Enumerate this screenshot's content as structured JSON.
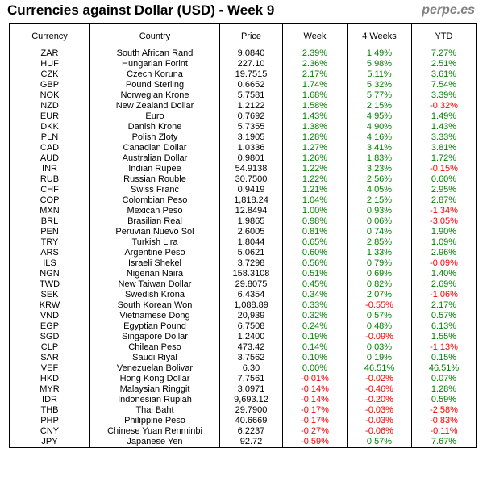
{
  "title": "Currencies against Dollar (USD) - Week 9",
  "brand": "perpe.es",
  "colors": {
    "positive": "#008000",
    "negative": "#ff0000"
  },
  "columns": [
    "Currency",
    "Country",
    "Price",
    "Week",
    "4 Weeks",
    "YTD"
  ],
  "rows": [
    {
      "code": "ZAR",
      "country": "South African Rand",
      "price": "9.0840",
      "week": "2.39%",
      "weeks4": "1.49%",
      "ytd": "7.27%"
    },
    {
      "code": "HUF",
      "country": "Hungarian Forint",
      "price": "227.10",
      "week": "2.36%",
      "weeks4": "5.98%",
      "ytd": "2.51%"
    },
    {
      "code": "CZK",
      "country": "Czech Koruna",
      "price": "19.7515",
      "week": "2.17%",
      "weeks4": "5.11%",
      "ytd": "3.61%"
    },
    {
      "code": "GBP",
      "country": "Pound Sterling",
      "price": "0.6652",
      "week": "1.74%",
      "weeks4": "5.32%",
      "ytd": "7.54%"
    },
    {
      "code": "NOK",
      "country": "Norwegian Krone",
      "price": "5.7581",
      "week": "1.68%",
      "weeks4": "5.77%",
      "ytd": "3.39%"
    },
    {
      "code": "NZD",
      "country": "New Zealand Dollar",
      "price": "1.2122",
      "week": "1.58%",
      "weeks4": "2.15%",
      "ytd": "-0.32%"
    },
    {
      "code": "EUR",
      "country": "Euro",
      "price": "0.7692",
      "week": "1.43%",
      "weeks4": "4.95%",
      "ytd": "1.49%"
    },
    {
      "code": "DKK",
      "country": "Danish Krone",
      "price": "5.7355",
      "week": "1.38%",
      "weeks4": "4.90%",
      "ytd": "1.43%"
    },
    {
      "code": "PLN",
      "country": "Polish Zloty",
      "price": "3.1905",
      "week": "1.28%",
      "weeks4": "4.16%",
      "ytd": "3.33%"
    },
    {
      "code": "CAD",
      "country": "Canadian Dollar",
      "price": "1.0336",
      "week": "1.27%",
      "weeks4": "3.41%",
      "ytd": "3.81%"
    },
    {
      "code": "AUD",
      "country": "Australian Dollar",
      "price": "0.9801",
      "week": "1.26%",
      "weeks4": "1.83%",
      "ytd": "1.72%"
    },
    {
      "code": "INR",
      "country": "Indian Rupee",
      "price": "54.9138",
      "week": "1.22%",
      "weeks4": "3.23%",
      "ytd": "-0.15%"
    },
    {
      "code": "RUB",
      "country": "Russian Rouble",
      "price": "30.7500",
      "week": "1.22%",
      "weeks4": "2.56%",
      "ytd": "0.60%"
    },
    {
      "code": "CHF",
      "country": "Swiss Franc",
      "price": "0.9419",
      "week": "1.21%",
      "weeks4": "4.05%",
      "ytd": "2.95%"
    },
    {
      "code": "COP",
      "country": "Colombian Peso",
      "price": "1,818.24",
      "week": "1.04%",
      "weeks4": "2.15%",
      "ytd": "2.87%"
    },
    {
      "code": "MXN",
      "country": "Mexican Peso",
      "price": "12.8494",
      "week": "1.00%",
      "weeks4": "0.93%",
      "ytd": "-1.34%"
    },
    {
      "code": "BRL",
      "country": "Brasilian Real",
      "price": "1.9865",
      "week": "0.98%",
      "weeks4": "0.06%",
      "ytd": "-3.05%"
    },
    {
      "code": "PEN",
      "country": "Peruvian Nuevo Sol",
      "price": "2.6005",
      "week": "0.81%",
      "weeks4": "0.74%",
      "ytd": "1.90%"
    },
    {
      "code": "TRY",
      "country": "Turkish Lira",
      "price": "1.8044",
      "week": "0.65%",
      "weeks4": "2.85%",
      "ytd": "1.09%"
    },
    {
      "code": "ARS",
      "country": "Argentine Peso",
      "price": "5.0621",
      "week": "0.60%",
      "weeks4": "1.33%",
      "ytd": "2.96%"
    },
    {
      "code": "ILS",
      "country": "Israeli Shekel",
      "price": "3.7298",
      "week": "0.56%",
      "weeks4": "0.79%",
      "ytd": "-0.09%"
    },
    {
      "code": "NGN",
      "country": "Nigerian Naira",
      "price": "158.3108",
      "week": "0.51%",
      "weeks4": "0.69%",
      "ytd": "1.40%"
    },
    {
      "code": "TWD",
      "country": "New Taiwan Dollar",
      "price": "29.8075",
      "week": "0.45%",
      "weeks4": "0.82%",
      "ytd": "2.69%"
    },
    {
      "code": "SEK",
      "country": "Swedish Krona",
      "price": "6.4354",
      "week": "0.34%",
      "weeks4": "2.07%",
      "ytd": "-1.06%"
    },
    {
      "code": "KRW",
      "country": "South Korean Won",
      "price": "1,088.89",
      "week": "0.33%",
      "weeks4": "-0.55%",
      "ytd": "2.17%"
    },
    {
      "code": "VND",
      "country": "Vietnamese Dong",
      "price": "20,939",
      "week": "0.32%",
      "weeks4": "0.57%",
      "ytd": "0.57%"
    },
    {
      "code": "EGP",
      "country": "Egyptian Pound",
      "price": "6.7508",
      "week": "0.24%",
      "weeks4": "0.48%",
      "ytd": "6.13%"
    },
    {
      "code": "SGD",
      "country": "Singapore Dollar",
      "price": "1.2400",
      "week": "0.19%",
      "weeks4": "-0.09%",
      "ytd": "1.55%"
    },
    {
      "code": "CLP",
      "country": "Chilean Peso",
      "price": "473.42",
      "week": "0.14%",
      "weeks4": "0.03%",
      "ytd": "-1.13%"
    },
    {
      "code": "SAR",
      "country": "Saudi Riyal",
      "price": "3.7562",
      "week": "0.10%",
      "weeks4": "0.19%",
      "ytd": "0.15%"
    },
    {
      "code": "VEF",
      "country": "Venezuelan Bolivar",
      "price": "6.30",
      "week": "0.00%",
      "weeks4": "46.51%",
      "ytd": "46.51%"
    },
    {
      "code": "HKD",
      "country": "Hong Kong Dollar",
      "price": "7.7561",
      "week": "-0.01%",
      "weeks4": "-0.02%",
      "ytd": "0.07%"
    },
    {
      "code": "MYR",
      "country": "Malaysian Ringgit",
      "price": "3.0971",
      "week": "-0.14%",
      "weeks4": "-0.46%",
      "ytd": "1.28%"
    },
    {
      "code": "IDR",
      "country": "Indonesian Rupiah",
      "price": "9,693.12",
      "week": "-0.14%",
      "weeks4": "-0.20%",
      "ytd": "0.59%"
    },
    {
      "code": "THB",
      "country": "Thai Baht",
      "price": "29.7900",
      "week": "-0.17%",
      "weeks4": "-0.03%",
      "ytd": "-2.58%"
    },
    {
      "code": "PHP",
      "country": "Philippine Peso",
      "price": "40.6669",
      "week": "-0.17%",
      "weeks4": "-0.03%",
      "ytd": "-0.83%"
    },
    {
      "code": "CNY",
      "country": "Chinese Yuan Renminbi",
      "price": "6.2237",
      "week": "-0.27%",
      "weeks4": "-0.06%",
      "ytd": "-0.11%"
    },
    {
      "code": "JPY",
      "country": "Japanese Yen",
      "price": "92.72",
      "week": "-0.59%",
      "weeks4": "0.57%",
      "ytd": "7.67%"
    }
  ]
}
